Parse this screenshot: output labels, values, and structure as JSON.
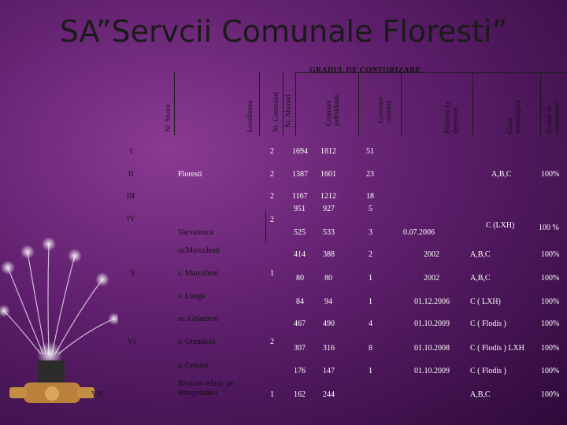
{
  "page": {
    "title": "SA”Servcii Comunale Floresti”"
  },
  "table": {
    "caption": "GRADUL DE CONTORIZARE",
    "headers": {
      "nr_sector": "Nr. Sector",
      "localitatea": "Localitatea",
      "nr_controlori": "Nr. Controlori",
      "nr_abonati": "Nr. Abonati",
      "contoare_individuale": "Contoare individuale",
      "contoare_comune": "Contoare comune",
      "primirea_la_deservire": "Primirea la deservire",
      "clasa_metrologica": "Clasa metrologica",
      "gradul_de_contorizare": "Gradul de contorizare"
    },
    "cells": {
      "r1_sector": "I",
      "r1_ctrl": "2",
      "r1_abon": "1694",
      "r1_ind": "1812",
      "r1_com": "51",
      "r2_sector": "II",
      "r2_loc": "Floresti",
      "r2_ctrl": "2",
      "r2_abon": "1387",
      "r2_ind": "1601",
      "r2_com": "23",
      "r2_clasa": "A,B,C",
      "r2_grad": "100%",
      "r3_sector": "III",
      "r3_ctrl": "2",
      "r3_abon": "1167",
      "r3_ind": "1212",
      "r3_com": "18",
      "r4a_abon": "951",
      "r4a_ind": "927",
      "r4a_com": "5",
      "r4_sector": "IV",
      "r4_ctrl": "2",
      "r4_loc": "Varvareuca",
      "r4_abon": "525",
      "r4_ind": "533",
      "r4_com": "3",
      "r4_prim": "0.07.2006",
      "r4_clasa": "C (LXH)",
      "r4_grad": "100 %",
      "r5a_loc": "or.Marculesti",
      "r5a_abon": "414",
      "r5a_ind": "388",
      "r5a_com": "2",
      "r5a_prim": "2002",
      "r5a_clasa": "A,B,C",
      "r5a_grad": "100%",
      "r5_sector": "V",
      "r5_loc": "s. Marculesti",
      "r5_ctrl": "1",
      "r5_abon": "80",
      "r5_ind": "80",
      "r5_com": "1",
      "r5_prim": "2002",
      "r5_clasa": "A,B,C",
      "r5_grad": "100%",
      "r6_loc": "s. Lunga",
      "r6_abon": "84",
      "r6_ind": "94",
      "r6_com": "1",
      "r6_prim": "01.12.2006",
      "r6_clasa": "C ( LXH)",
      "r6_grad": "100%",
      "r7_loc": "or. Ghindesti",
      "r7_abon": "467",
      "r7_ind": "490",
      "r7_com": "4",
      "r7_prim": "01.10.2009",
      "r7_clasa": "C ( Flodis )",
      "r7_grad": "100%",
      "r8_sector": "VI",
      "r8_loc": "s. Ghindesti",
      "r8_ctrl": "2",
      "r8_abon": "307",
      "r8_ind": "316",
      "r8_com": "8",
      "r8_prim": "01.10.2008",
      "r8_clasa": "C ( Flodis ) LXH",
      "r8_grad": "100%",
      "r9_loc": "s. Cenusa",
      "r9_abon": "176",
      "r9_ind": "147",
      "r9_com": "1",
      "r9_prim": "01.10.2009",
      "r9_clasa": "C ( Flodis )",
      "r9_grad": "100%",
      "r10_sector": "VII",
      "r10_loc_1": "Revizor tehnic pe",
      "r10_loc_2": "intreprinderi",
      "r10_ctrl": "1",
      "r10_abon": "162",
      "r10_ind": "244",
      "r10_clasa": "A,B,C",
      "r10_grad": "100%"
    }
  }
}
